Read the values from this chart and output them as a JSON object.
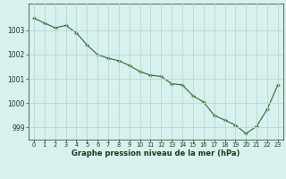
{
  "x": [
    0,
    1,
    2,
    3,
    4,
    5,
    6,
    7,
    8,
    9,
    10,
    11,
    12,
    13,
    14,
    15,
    16,
    17,
    18,
    19,
    20,
    21,
    22,
    23
  ],
  "y": [
    1003.5,
    1003.3,
    1003.1,
    1003.2,
    1002.9,
    1002.4,
    1002.0,
    1001.85,
    1001.75,
    1001.55,
    1001.3,
    1001.15,
    1001.1,
    1000.8,
    1000.75,
    1000.3,
    1000.05,
    999.5,
    999.3,
    999.1,
    998.75,
    999.05,
    999.75,
    1000.75
  ],
  "line_color": "#2d6a2d",
  "marker": "+",
  "marker_size": 3,
  "marker_linewidth": 1.0,
  "line_width": 0.8,
  "bg_color": "#d8f0ee",
  "grid_color": "#b8d8d4",
  "xlabel": "Graphe pression niveau de la mer (hPa)",
  "xlabel_color": "#1a3a1a",
  "tick_color": "#1a3a1a",
  "ylim": [
    998.5,
    1004.1
  ],
  "yticks": [
    999,
    1000,
    1001,
    1002,
    1003
  ],
  "ytick_fontsize": 5.5,
  "xlim": [
    -0.5,
    23.5
  ],
  "xticks": [
    0,
    1,
    2,
    3,
    4,
    5,
    6,
    7,
    8,
    9,
    10,
    11,
    12,
    13,
    14,
    15,
    16,
    17,
    18,
    19,
    20,
    21,
    22,
    23
  ],
  "xtick_fontsize": 4.8,
  "xlabel_fontsize": 6.0
}
